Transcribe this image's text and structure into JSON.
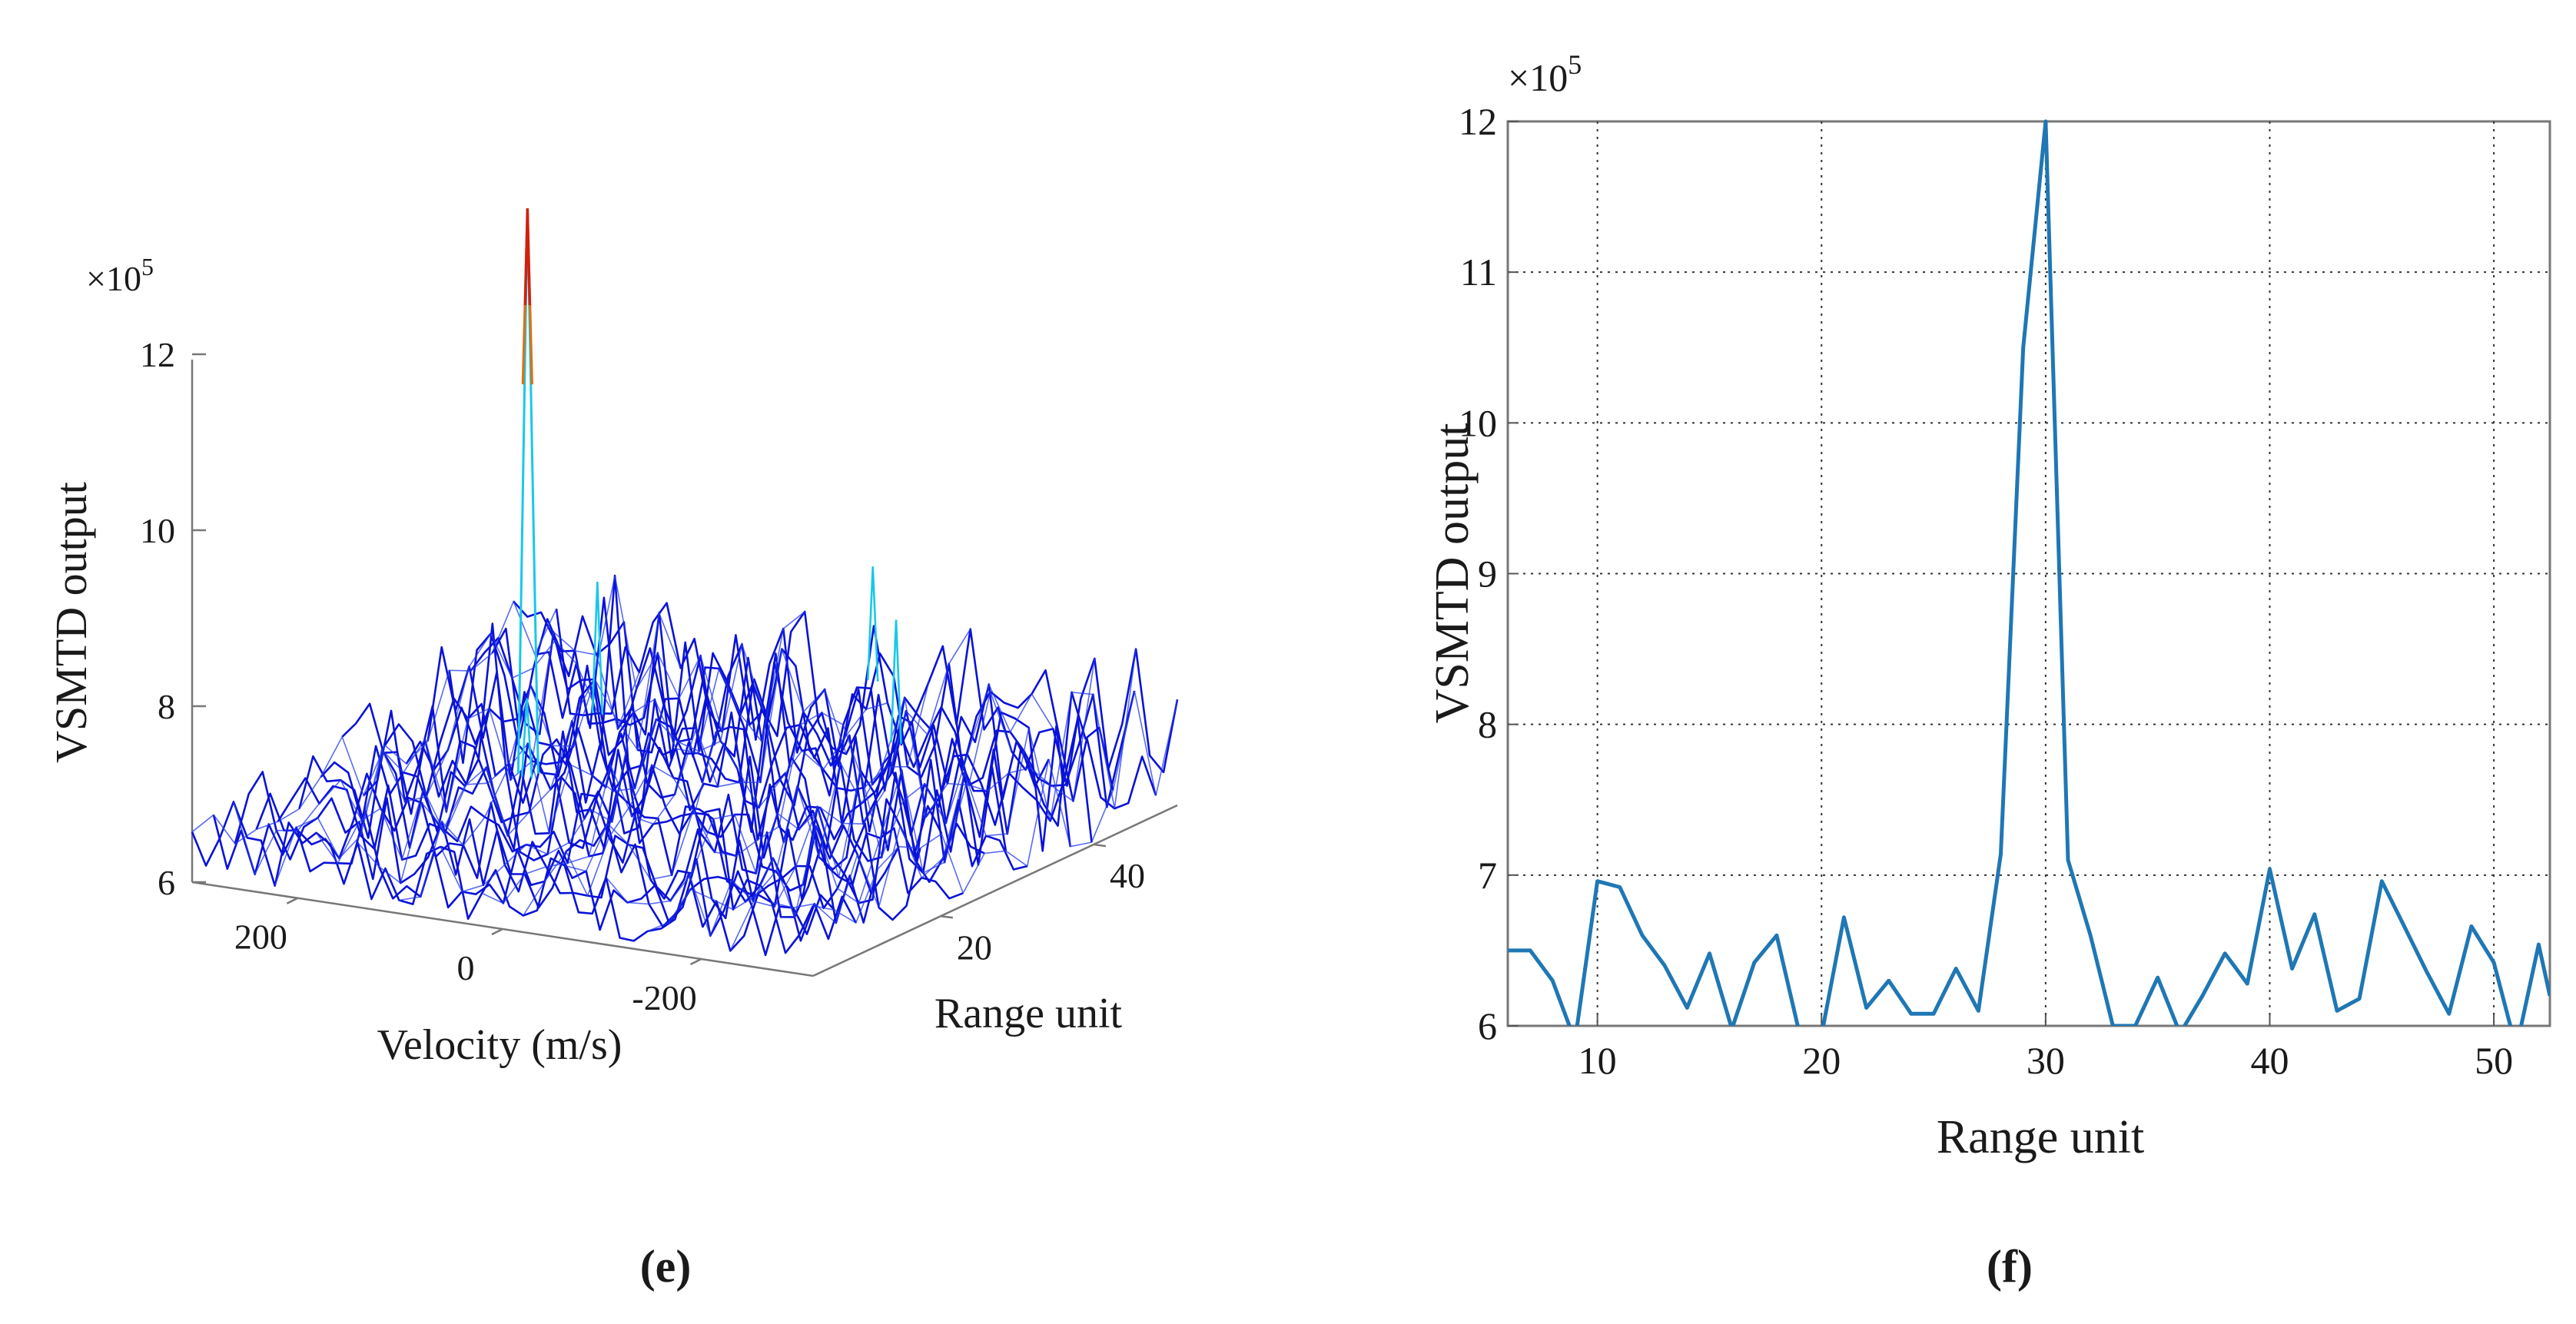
{
  "chart_data": [
    {
      "panel": "e",
      "type": "surface",
      "caption": "(e)",
      "zlabel": "VSMTD output",
      "zscale_label": "×10",
      "zscale_exp": "5",
      "zticks": [
        "6",
        "8",
        "10",
        "12"
      ],
      "zlim": [
        6,
        12
      ],
      "xlabel": "Velocity (m/s)",
      "xticks": [
        "200",
        "0",
        "-200"
      ],
      "ylabel": "Range unit",
      "yticks": [
        "20",
        "40"
      ],
      "noise_floor": [
        6,
        7.8
      ],
      "peak": {
        "z": 12.9,
        "velocity": 150,
        "range_unit": 30
      },
      "colors": {
        "low": "#0a12d8",
        "mid": "#18c8e8",
        "high": "#e07010",
        "peak": "#d02010"
      }
    },
    {
      "panel": "f",
      "type": "line",
      "caption": "(f)",
      "xlabel": "Range unit",
      "ylabel": "VSMTD output",
      "yscale_label": "×10",
      "yscale_exp": "5",
      "xlim": [
        6,
        52.5
      ],
      "ylim": [
        6,
        12
      ],
      "xticks": [
        "10",
        "20",
        "30",
        "40",
        "50"
      ],
      "yticks": [
        "6",
        "7",
        "8",
        "9",
        "10",
        "11",
        "12"
      ],
      "grid": true,
      "color": "#1f77b4",
      "x": [
        6,
        7,
        8,
        9,
        10,
        11,
        12,
        13,
        14,
        15,
        16,
        17,
        18,
        19,
        20,
        21,
        22,
        23,
        24,
        25,
        26,
        27,
        28,
        29,
        30,
        31,
        32,
        33,
        34,
        35,
        36,
        37,
        38,
        39,
        40,
        41,
        42,
        43,
        44,
        45,
        46,
        47,
        48,
        49,
        50,
        51,
        52,
        52.5
      ],
      "y": [
        6.5,
        6.5,
        6.3,
        5.9,
        6.96,
        6.92,
        6.6,
        6.4,
        6.12,
        6.48,
        5.98,
        6.42,
        6.6,
        5.96,
        5.94,
        6.72,
        6.12,
        6.3,
        6.08,
        6.08,
        6.38,
        6.1,
        7.14,
        10.5,
        12.0,
        7.1,
        6.6,
        6.0,
        6.0,
        6.32,
        5.95,
        6.2,
        6.48,
        6.28,
        7.04,
        6.38,
        6.74,
        6.1,
        6.18,
        6.96,
        6.66,
        6.36,
        6.08,
        6.66,
        6.42,
        5.85,
        6.54,
        6.2
      ]
    }
  ]
}
